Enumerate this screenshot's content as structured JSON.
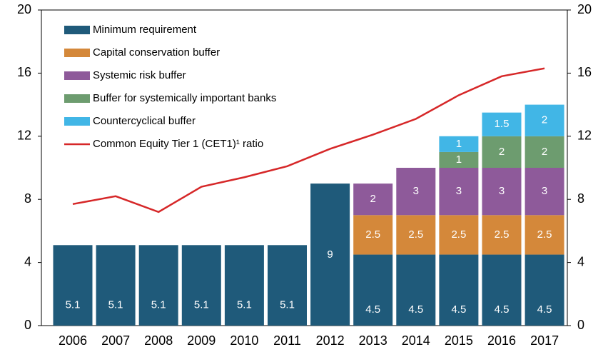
{
  "chart_data": {
    "type": "bar",
    "categories": [
      "2006",
      "2007",
      "2008",
      "2009",
      "2010",
      "2011",
      "2012",
      "2013",
      "2014",
      "2015",
      "2016",
      "2017"
    ],
    "series": [
      {
        "name": "Minimum requirement",
        "type": "bar",
        "color": "#1f5a7a",
        "values": [
          5.1,
          5.1,
          5.1,
          5.1,
          5.1,
          5.1,
          9,
          4.5,
          4.5,
          4.5,
          4.5,
          4.5
        ]
      },
      {
        "name": "Capital conservation buffer",
        "type": "bar",
        "color": "#d4883a",
        "values": [
          null,
          null,
          null,
          null,
          null,
          null,
          null,
          2.5,
          2.5,
          2.5,
          2.5,
          2.5
        ]
      },
      {
        "name": "Systemic risk buffer",
        "type": "bar",
        "color": "#8e5a9a",
        "values": [
          null,
          null,
          null,
          null,
          null,
          null,
          null,
          2,
          3,
          3,
          3,
          3
        ]
      },
      {
        "name": "Buffer for systemically important banks",
        "type": "bar",
        "color": "#6d9c6f",
        "values": [
          null,
          null,
          null,
          null,
          null,
          null,
          null,
          null,
          null,
          1,
          2,
          2
        ]
      },
      {
        "name": "Countercyclical buffer",
        "type": "bar",
        "color": "#41b6e6",
        "values": [
          null,
          null,
          null,
          null,
          null,
          null,
          null,
          null,
          null,
          1,
          1.5,
          2
        ]
      },
      {
        "name": "Common Equity Tier 1 (CET1)¹ ratio",
        "type": "line",
        "color": "#d62728",
        "values": [
          7.7,
          8.2,
          7.2,
          8.8,
          9.4,
          10.1,
          11.2,
          12.1,
          13.1,
          14.6,
          15.8,
          16.3
        ]
      }
    ],
    "ylim": [
      0,
      20
    ],
    "yticks": [
      0,
      4,
      8,
      12,
      16,
      20
    ],
    "y2lim": [
      0,
      20
    ],
    "y2ticks": [
      0,
      4,
      8,
      12,
      16,
      20
    ],
    "legend": "upper left"
  }
}
